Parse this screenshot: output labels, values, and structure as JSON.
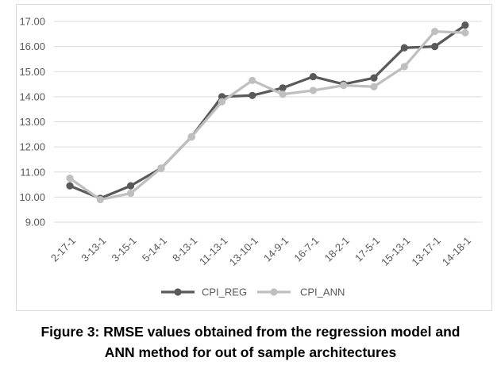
{
  "figure": {
    "caption_line1": "Figure 3: RMSE values obtained from the regression model and",
    "caption_line2": "ANN method for out of sample architectures"
  },
  "chart_data": {
    "type": "line",
    "title": "",
    "xlabel": "",
    "ylabel": "",
    "categories": [
      "2-17-1",
      "3-13-1",
      "3-15-1",
      "5-14-1",
      "8-13-1",
      "11-13-1",
      "13-10-1",
      "14-9-1",
      "16-7-1",
      "18-2-1",
      "17-5-1",
      "15-13-1",
      "13-17-1",
      "14-18-1"
    ],
    "series": [
      {
        "name": "CPI_REG",
        "color": "#595959",
        "values": [
          10.45,
          9.95,
          10.45,
          11.15,
          12.4,
          14.0,
          14.05,
          14.35,
          14.8,
          14.5,
          14.75,
          15.95,
          16.0,
          16.85
        ]
      },
      {
        "name": "CPI_ANN",
        "color": "#bfbfbf",
        "values": [
          10.75,
          9.9,
          10.15,
          11.15,
          12.4,
          13.8,
          14.65,
          14.1,
          14.25,
          14.45,
          14.4,
          15.2,
          16.6,
          16.55
        ]
      }
    ],
    "y_axis": {
      "min": 9,
      "max": 17,
      "step": 1,
      "tick_labels": [
        "17.00",
        "16.00",
        "15.00",
        "14.00",
        "13.00",
        "12.00",
        "11.00",
        "10.00",
        "9.00"
      ]
    },
    "grid": true,
    "legend_position": "bottom",
    "axis_text_color": "#595959",
    "gridline_color": "#d9d9d9",
    "frame_border_color": "#d9d9d9",
    "marker_style": "circle"
  }
}
